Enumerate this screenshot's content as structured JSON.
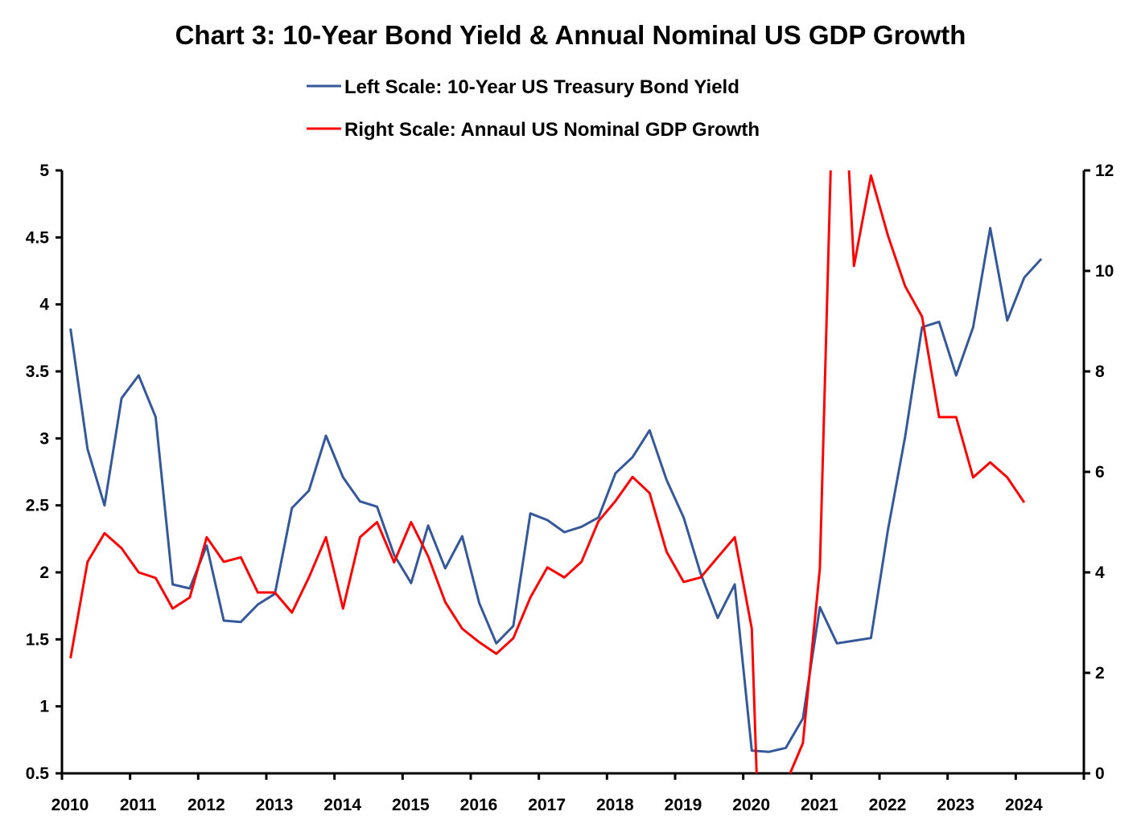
{
  "chart_data": {
    "type": "line",
    "title": "Chart 3: 10-Year Bond Yield & Annual Nominal US GDP Growth",
    "frequency": "quarterly",
    "x_start": "2010Q1",
    "x_tick_labels": [
      "2010",
      "2011",
      "2012",
      "2013",
      "2014",
      "2015",
      "2016",
      "2017",
      "2018",
      "2019",
      "2020",
      "2021",
      "2022",
      "2023",
      "2024"
    ],
    "y_left": {
      "range": [
        0.5,
        5
      ],
      "tick_labels": [
        "0.5",
        "1",
        "1.5",
        "2",
        "2.5",
        "3",
        "3.5",
        "4",
        "4.5",
        "5"
      ]
    },
    "y_right": {
      "range": [
        0,
        12
      ],
      "tick_labels": [
        "0",
        "2",
        "4",
        "6",
        "8",
        "10",
        "12"
      ]
    },
    "grid": false,
    "legend_position": "top-center",
    "series": [
      {
        "name": "Left Scale: 10-Year US Treasury Bond Yield",
        "axis": "left",
        "color": "#34589A",
        "values": [
          3.82,
          2.92,
          2.5,
          3.3,
          3.47,
          3.16,
          1.91,
          1.88,
          2.2,
          1.64,
          1.63,
          1.76,
          1.84,
          2.48,
          2.61,
          3.02,
          2.71,
          2.53,
          2.49,
          2.13,
          1.92,
          2.35,
          2.03,
          2.27,
          1.77,
          1.47,
          1.6,
          2.44,
          2.39,
          2.3,
          2.34,
          2.41,
          2.74,
          2.86,
          3.06,
          2.69,
          2.41,
          1.99,
          1.66,
          1.91,
          0.67,
          0.66,
          0.69,
          0.91,
          1.74,
          1.47,
          1.49,
          1.51,
          2.32,
          3.01,
          3.83,
          3.87,
          3.47,
          3.83,
          4.57,
          3.88,
          4.2,
          4.34
        ]
      },
      {
        "name": "Right Scale: Annaul US Nominal GDP Growth",
        "axis": "right",
        "color": "#FF0000",
        "values": [
          2.29,
          4.21,
          4.78,
          4.48,
          4.0,
          3.89,
          3.28,
          3.5,
          4.7,
          4.21,
          4.3,
          3.6,
          3.6,
          3.2,
          3.9,
          4.7,
          3.28,
          4.7,
          5.0,
          4.2,
          5.0,
          4.32,
          3.41,
          2.88,
          2.61,
          2.38,
          2.69,
          3.5,
          4.1,
          3.9,
          4.21,
          5.02,
          5.42,
          5.9,
          5.58,
          4.41,
          3.81,
          3.9,
          4.3,
          4.7,
          2.88,
          -7.2,
          -0.2,
          0.6,
          4.08,
          16.6,
          10.1,
          11.9,
          10.7,
          9.7,
          9.09,
          7.09,
          7.09,
          5.89,
          6.19,
          5.89,
          5.39
        ]
      }
    ]
  }
}
